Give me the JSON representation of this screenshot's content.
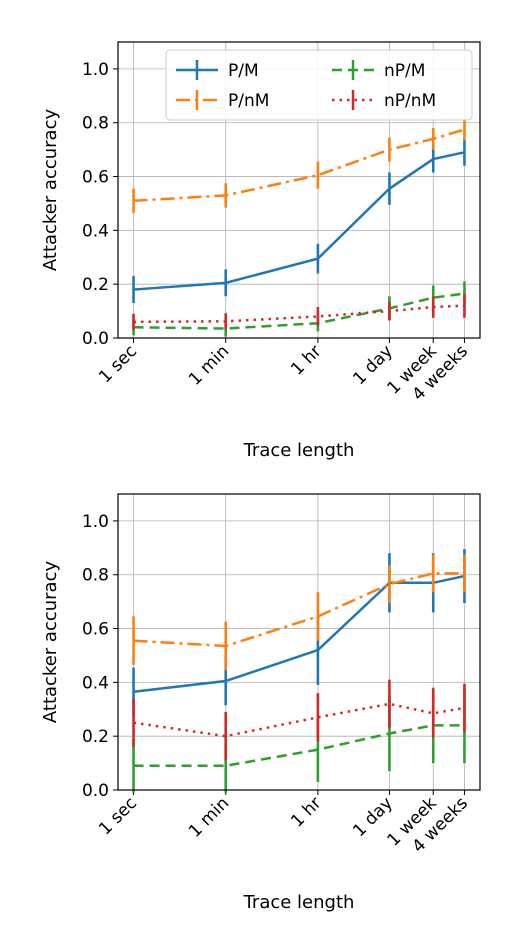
{
  "colors": {
    "P/M": "#1f77b4",
    "P/nM": "#ff7f0e",
    "nP/M": "#2ca02c",
    "nP/nM": "#d62728"
  },
  "chart_data": [
    {
      "type": "line",
      "xlabel": "Trace length",
      "ylabel": "Attacker accuracy",
      "categories": [
        "1 sec",
        "1 min",
        "1 hr",
        "1 day",
        "1 week",
        "4 weeks"
      ],
      "x_log_seconds": [
        1,
        60,
        3600,
        86400,
        604800,
        2419200
      ],
      "ylim": [
        0,
        1.1
      ],
      "yticks": [
        "0.0",
        "0.2",
        "0.4",
        "0.6",
        "0.8",
        "1.0"
      ],
      "grid": true,
      "legend_position": "top",
      "series": [
        {
          "name": "P/M",
          "style": "solid",
          "values": [
            0.18,
            0.205,
            0.295,
            0.555,
            0.665,
            0.69
          ],
          "err": [
            0.05,
            0.05,
            0.055,
            0.06,
            0.05,
            0.05
          ]
        },
        {
          "name": "P/nM",
          "style": "dashdot",
          "values": [
            0.51,
            0.53,
            0.605,
            0.7,
            0.74,
            0.775
          ],
          "err": [
            0.045,
            0.045,
            0.05,
            0.045,
            0.04,
            0.04
          ]
        },
        {
          "name": "nP/M",
          "style": "dashed",
          "values": [
            0.04,
            0.035,
            0.055,
            0.11,
            0.15,
            0.165
          ],
          "err": [
            0.03,
            0.03,
            0.03,
            0.045,
            0.045,
            0.045
          ]
        },
        {
          "name": "nP/nM",
          "style": "dotted",
          "values": [
            0.06,
            0.062,
            0.08,
            0.1,
            0.115,
            0.12
          ],
          "err": [
            0.03,
            0.03,
            0.035,
            0.035,
            0.04,
            0.045
          ]
        }
      ]
    },
    {
      "type": "line",
      "xlabel": "Trace length",
      "ylabel": "Attacker accuracy",
      "categories": [
        "1 sec",
        "1 min",
        "1 hr",
        "1 day",
        "1 week",
        "4 weeks"
      ],
      "x_log_seconds": [
        1,
        60,
        3600,
        86400,
        604800,
        2419200
      ],
      "ylim": [
        0,
        1.1
      ],
      "yticks": [
        "0.0",
        "0.2",
        "0.4",
        "0.6",
        "0.8",
        "1.0"
      ],
      "grid": true,
      "series": [
        {
          "name": "P/M",
          "style": "solid",
          "values": [
            0.365,
            0.405,
            0.52,
            0.77,
            0.77,
            0.795
          ],
          "err": [
            0.09,
            0.09,
            0.13,
            0.11,
            0.11,
            0.1
          ]
        },
        {
          "name": "P/nM",
          "style": "dashdot",
          "values": [
            0.555,
            0.535,
            0.645,
            0.765,
            0.805,
            0.805
          ],
          "err": [
            0.09,
            0.09,
            0.09,
            0.07,
            0.07,
            0.07
          ]
        },
        {
          "name": "nP/M",
          "style": "dashed",
          "values": [
            0.09,
            0.09,
            0.15,
            0.21,
            0.24,
            0.24
          ],
          "err": [
            0.1,
            0.1,
            0.12,
            0.14,
            0.14,
            0.14
          ]
        },
        {
          "name": "nP/nM",
          "style": "dotted",
          "values": [
            0.25,
            0.2,
            0.27,
            0.32,
            0.285,
            0.305
          ],
          "err": [
            0.09,
            0.09,
            0.09,
            0.09,
            0.09,
            0.09
          ]
        }
      ]
    }
  ]
}
